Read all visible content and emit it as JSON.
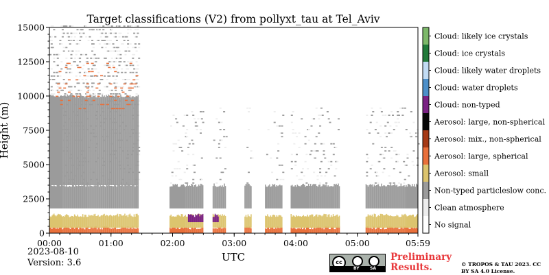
{
  "chart_data": {
    "type": "heatmap",
    "title": "Target classifications (V2) from pollyxt_tau at Tel_Aviv",
    "xlabel": "UTC",
    "ylabel": "Height (m)",
    "x_range": [
      "00:00",
      "05:59"
    ],
    "x_ticks": [
      "00:00",
      "01:00",
      "02:00",
      "03:00",
      "04:00",
      "05:00",
      "05:59"
    ],
    "y_range": [
      0,
      15000
    ],
    "y_ticks": [
      "0",
      "2500",
      "5000",
      "7500",
      "10000",
      "12500",
      "15000"
    ],
    "y_tick_values": [
      0,
      2500,
      5000,
      7500,
      10000,
      12500,
      15000
    ],
    "legend_position": "right",
    "legend": [
      {
        "label": "Cloud: likely ice crystals",
        "color": "#7db86a"
      },
      {
        "label": "Cloud: ice crystals",
        "color": "#217a3a"
      },
      {
        "label": "Cloud: likely water droplets",
        "color": "#c2dcf4"
      },
      {
        "label": "Cloud: water droplets",
        "color": "#4c8fc9"
      },
      {
        "label": "Cloud: non-typed",
        "color": "#7a2184"
      },
      {
        "label": "Aerosol: large, non-spherical",
        "color": "#080808"
      },
      {
        "label": "Aerosol: mix., non-spherical",
        "color": "#a63a16"
      },
      {
        "label": "Aerosol: large, spherical",
        "color": "#e9703b"
      },
      {
        "label": "Aerosol: small",
        "color": "#dcc46e"
      },
      {
        "label": "Non-typed particleslow conc.",
        "color": "#9b9b9b"
      },
      {
        "label": "Clean atmosphere",
        "color": "#ededed"
      },
      {
        "label": "No signal",
        "color": "#ffffff"
      }
    ],
    "no_signal_gaps_utc": [
      [
        "01:27",
        "01:57"
      ],
      [
        "02:30",
        "02:39"
      ],
      [
        "02:52",
        "03:10"
      ],
      [
        "03:17",
        "03:30"
      ],
      [
        "03:47",
        "03:55"
      ],
      [
        "04:43",
        "05:08"
      ]
    ],
    "layers": [
      {
        "class": "Aerosol: large, spherical",
        "height_m": [
          0,
          400
        ]
      },
      {
        "class": "Aerosol: small",
        "height_m": [
          400,
          1300
        ]
      },
      {
        "class": "Cloud: non-typed",
        "height_m": [
          800,
          1300
        ],
        "time_utc": [
          "02:15",
          "02:45"
        ]
      },
      {
        "class": "Non-typed particleslow conc.",
        "height_m": [
          1800,
          3500
        ]
      },
      {
        "class": "Non-typed particleslow conc.",
        "height_m": [
          3500,
          10000
        ],
        "time_utc": [
          "00:00",
          "01:27"
        ]
      },
      {
        "class": "Aerosol: large, spherical",
        "height_m": [
          9000,
          12500
        ],
        "time_utc": [
          "00:00",
          "01:27"
        ],
        "pattern": "scattered"
      }
    ]
  },
  "info": {
    "date": "2023-08-10",
    "version": "Version: 3.6",
    "preliminary": "Preliminary Results.",
    "copyright": "© TROPOS & TAU 2023. CC BY SA 4.0 License.",
    "license_badge": {
      "cc": "cc",
      "by": "BY",
      "sa": "SA"
    }
  }
}
